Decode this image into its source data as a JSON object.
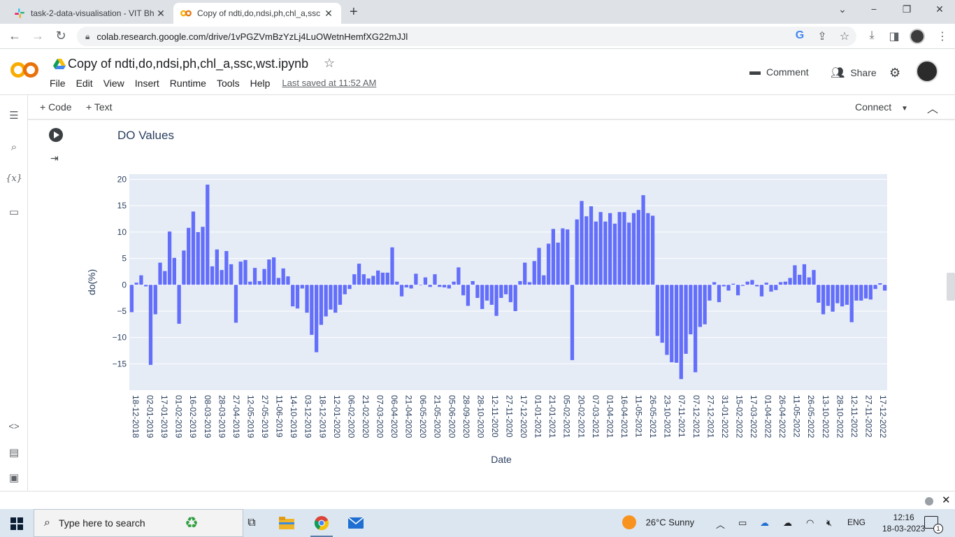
{
  "browser": {
    "tabs": [
      {
        "title": "task-2-data-visualisation - VIT Bh",
        "active": false
      },
      {
        "title": "Copy of ndti,do,ndsi,ph,chl_a,ssc",
        "active": true
      }
    ],
    "url": "colab.research.google.com/drive/1vPGZVmBzYzLj4LuOWetnHemfXG22mJJl"
  },
  "colab": {
    "logo_text": "CO",
    "notebook_title": "Copy of ndti,do,ndsi,ph,chl_a,ssc,wst.ipynb",
    "menu": [
      "File",
      "Edit",
      "View",
      "Insert",
      "Runtime",
      "Tools",
      "Help"
    ],
    "last_saved": "Last saved at 11:52 AM",
    "comment_label": "Comment",
    "share_label": "Share",
    "toolbar": {
      "code_label": "+ Code",
      "text_label": "+ Text",
      "connect_label": "Connect"
    },
    "rail_icons": [
      "toc-icon",
      "search-icon",
      "variables-icon",
      "files-icon",
      "code-snippets-icon",
      "command-palette-icon",
      "terminal-icon"
    ],
    "rail_variables_glyph": "{x}"
  },
  "chart_data": {
    "type": "bar",
    "title": "DO Values",
    "xlabel": "Date",
    "ylabel": "do(%)",
    "ylim": [
      -20,
      21
    ],
    "yticks": [
      20,
      15,
      10,
      5,
      0,
      -5,
      -10,
      -15
    ],
    "ytick_labels": [
      "20",
      "15",
      "10",
      "5",
      "0",
      "−5",
      "−10",
      "−15"
    ],
    "bar_color": "#636efa",
    "plot_bg": "#e5ecf6",
    "xtick_labels": [
      "18-12-2018",
      "02-01-2019",
      "17-01-2019",
      "01-02-2019",
      "16-02-2019",
      "08-03-2019",
      "28-03-2019",
      "27-04-2019",
      "12-05-2019",
      "27-05-2019",
      "11-06-2019",
      "14-10-2019",
      "03-12-2019",
      "18-12-2019",
      "12-01-2020",
      "06-02-2020",
      "21-02-2020",
      "07-03-2020",
      "06-04-2020",
      "21-04-2020",
      "06-05-2020",
      "21-05-2020",
      "05-06-2020",
      "28-09-2020",
      "28-10-2020",
      "12-11-2020",
      "27-11-2020",
      "17-12-2020",
      "01-01-2021",
      "21-01-2021",
      "05-02-2021",
      "20-02-2021",
      "07-03-2021",
      "01-04-2021",
      "16-04-2021",
      "11-05-2021",
      "26-05-2021",
      "23-10-2021",
      "07-11-2021",
      "07-12-2021",
      "27-12-2021",
      "31-01-2022",
      "15-02-2022",
      "17-03-2022",
      "01-04-2022",
      "26-04-2022",
      "11-05-2022",
      "26-05-2022",
      "13-10-2022",
      "28-10-2022",
      "12-11-2022",
      "27-11-2022",
      "17-12-2022"
    ],
    "values": [
      -5.2,
      0.4,
      1.8,
      -0.3,
      -15.2,
      -5.6,
      4.2,
      2.6,
      10.1,
      5.1,
      -7.4,
      6.5,
      10.8,
      13.9,
      10.0,
      11.0,
      19.0,
      3.5,
      6.7,
      2.8,
      6.4,
      3.9,
      -7.2,
      4.4,
      4.7,
      0.6,
      3.2,
      0.7,
      3.0,
      4.8,
      5.2,
      1.3,
      3.1,
      1.6,
      -4.1,
      -4.5,
      -0.7,
      -5.3,
      -9.5,
      -12.8,
      -7.6,
      -6.0,
      -4.7,
      -5.3,
      -3.8,
      -1.8,
      -0.8,
      2.0,
      4.0,
      2.0,
      1.2,
      1.7,
      2.7,
      2.3,
      2.3,
      7.1,
      0.6,
      -2.2,
      -0.5,
      -0.7,
      2.1,
      -0.1,
      1.4,
      -0.4,
      2.0,
      -0.4,
      -0.5,
      -0.7,
      0.6,
      3.3,
      -2.0,
      -4.0,
      0.7,
      -2.5,
      -4.6,
      -3.0,
      -3.8,
      -5.9,
      -2.5,
      -1.8,
      -3.3,
      -5.0,
      0.7,
      4.2,
      0.5,
      4.5,
      7.0,
      1.8,
      7.8,
      10.6,
      8.0,
      10.7,
      10.5,
      -14.3,
      12.4,
      15.9,
      13.0,
      14.9,
      12.0,
      13.8,
      12.0,
      13.6,
      11.6,
      13.8,
      13.8,
      11.8,
      13.6,
      14.2,
      17.0,
      13.6,
      13.1,
      -9.7,
      -11.0,
      -13.3,
      -14.7,
      -14.8,
      -17.9,
      -13.1,
      -9.4,
      -16.6,
      -8.0,
      -7.5,
      -3.0,
      0.5,
      -3.3,
      -0.3,
      -1.1,
      0.2,
      -2.0,
      -0.2,
      0.6,
      0.9,
      -0.3,
      -2.2,
      0.4,
      -1.3,
      -1.0,
      0.5,
      0.6,
      1.3,
      3.7,
      1.9,
      3.9,
      1.4,
      2.8,
      -3.4,
      -5.6,
      -4.0,
      -5.1,
      -3.5,
      -4.1,
      -3.8,
      -7.1,
      -3.0,
      -3.0,
      -2.6,
      -2.8,
      -0.8,
      0.3,
      -1.1
    ],
    "grid": true,
    "legend": "none"
  },
  "taskbar": {
    "search_placeholder": "Type here to search",
    "weather": "26°C  Sunny",
    "lang": "ENG",
    "time": "12:16",
    "date": "18-03-2023",
    "notification_count": "1"
  }
}
